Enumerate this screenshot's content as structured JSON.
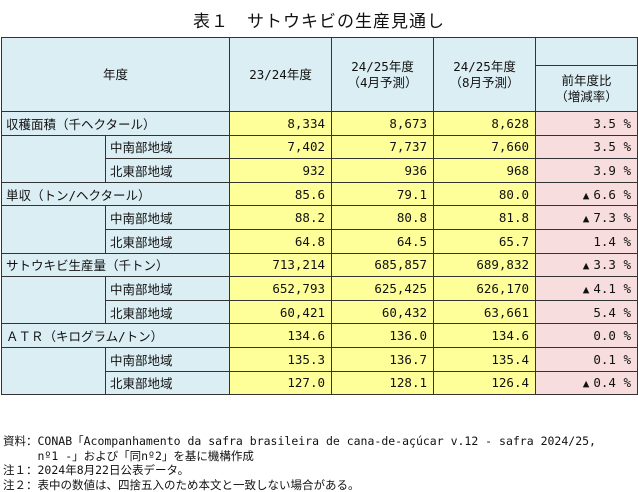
{
  "title": "表１　サトウキビの生産見通し",
  "header": {
    "year": "年度",
    "col1": "23/24年度",
    "col2_line1": "24/25年度",
    "col2_line2": "（4月予測）",
    "col3_line1": "24/25年度",
    "col3_line2": "（8月予測）",
    "col4_line1": "前年度比",
    "col4_line2": "（増減率）"
  },
  "rows": [
    {
      "label": "収穫面積（千ヘクタール）",
      "sub": false,
      "v1": "8,334",
      "v2": "8,673",
      "v3": "8,628",
      "tri": "",
      "ratio": "3.5 %"
    },
    {
      "label": "中南部地域",
      "sub": true,
      "v1": "7,402",
      "v2": "7,737",
      "v3": "7,660",
      "tri": "",
      "ratio": "3.5 %"
    },
    {
      "label": "北東部地域",
      "sub": true,
      "v1": "932",
      "v2": "936",
      "v3": "968",
      "tri": "",
      "ratio": "3.9 %"
    },
    {
      "label": "単収（トン/ヘクタール）",
      "sub": false,
      "v1": "85.6",
      "v2": "79.1",
      "v3": "80.0",
      "tri": "▲",
      "ratio": "6.6 %"
    },
    {
      "label": "中南部地域",
      "sub": true,
      "v1": "88.2",
      "v2": "80.8",
      "v3": "81.8",
      "tri": "▲",
      "ratio": "7.3 %"
    },
    {
      "label": "北東部地域",
      "sub": true,
      "v1": "64.8",
      "v2": "64.5",
      "v3": "65.7",
      "tri": "",
      "ratio": "1.4 %"
    },
    {
      "label": "サトウキビ生産量（千トン）",
      "sub": false,
      "v1": "713,214",
      "v2": "685,857",
      "v3": "689,832",
      "tri": "▲",
      "ratio": "3.3 %"
    },
    {
      "label": "中南部地域",
      "sub": true,
      "v1": "652,793",
      "v2": "625,425",
      "v3": "626,170",
      "tri": "▲",
      "ratio": "4.1 %"
    },
    {
      "label": "北東部地域",
      "sub": true,
      "v1": "60,421",
      "v2": "60,432",
      "v3": "63,661",
      "tri": "",
      "ratio": "5.4 %"
    },
    {
      "label": "ＡＴＲ（キログラム/トン）",
      "sub": false,
      "v1": "134.6",
      "v2": "136.0",
      "v3": "134.6",
      "tri": "",
      "ratio": "0.0 %"
    },
    {
      "label": "中南部地域",
      "sub": true,
      "v1": "135.3",
      "v2": "136.7",
      "v3": "135.4",
      "tri": "",
      "ratio": "0.1 %"
    },
    {
      "label": "北東部地域",
      "sub": true,
      "v1": "127.0",
      "v2": "128.1",
      "v3": "126.4",
      "tri": "▲",
      "ratio": "0.4 %"
    }
  ],
  "notes": {
    "source_line1": "資料：CONAB「Acompanhamento da safra brasileira de cana-de-açúcar v.12 - safra 2024/25,",
    "source_line2": "　　　nº1 -」および「同nº2」を基に機構作成",
    "note1": "注１：2024年8月22日公表データ。",
    "note2": "注２：表中の数値は、四捨五入のため本文と一致しない場合がある。"
  }
}
